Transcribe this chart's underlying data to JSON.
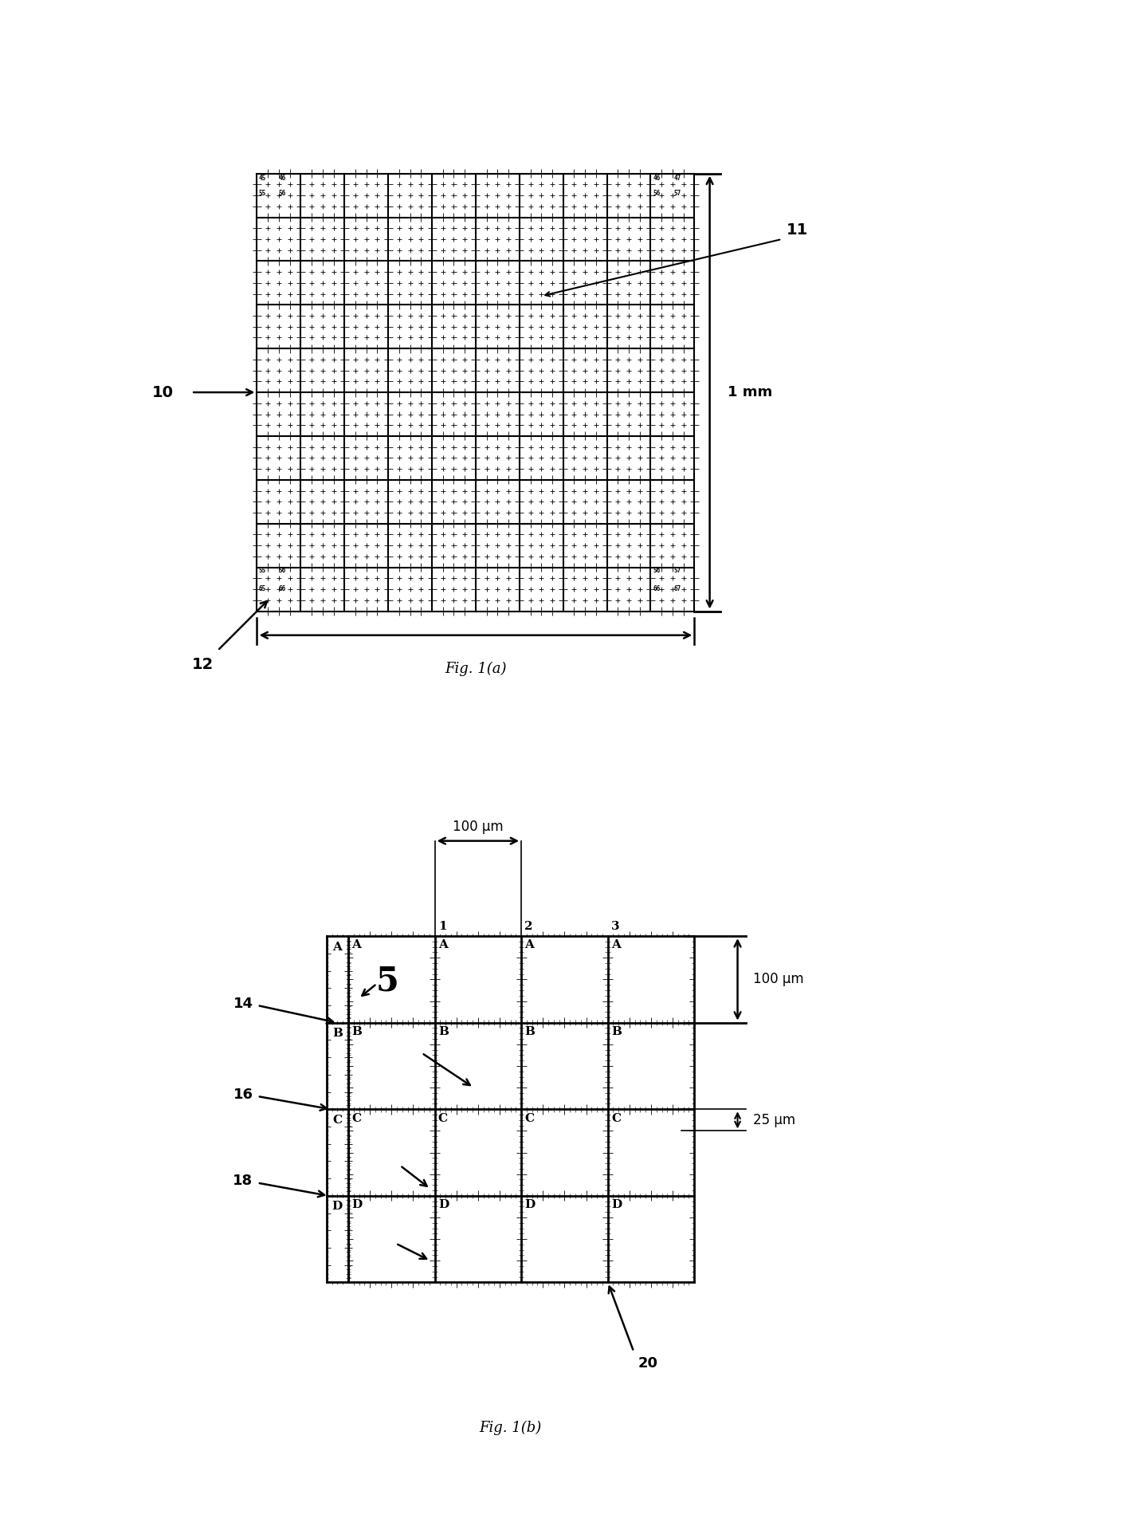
{
  "fig_width": 14.18,
  "fig_height": 19.19,
  "bg_color": "#ffffff",
  "fig1a": {
    "title": "Fig. 1(a)",
    "grid_rows": 10,
    "grid_cols": 10,
    "cell_size": 1.0,
    "sub_ticks": 4,
    "corner_labels_tl": [
      "45",
      "46",
      "55",
      "56"
    ],
    "corner_labels_tr": [
      "46",
      "47",
      "56",
      "57"
    ],
    "corner_labels_bl": [
      "55",
      "56",
      "65",
      "66"
    ],
    "corner_labels_br": [
      "56",
      "57",
      "66",
      "67"
    ],
    "label_10": "10",
    "label_11": "11",
    "label_12": "12",
    "dim_label_v": "1 mm"
  },
  "fig1b": {
    "title": "Fig. 1(b)",
    "row_labels": [
      "A",
      "B",
      "C",
      "D"
    ],
    "col_labels": [
      "1",
      "2",
      "3"
    ],
    "big_label": "5",
    "ann_labels": [
      "14",
      "16",
      "18",
      "20"
    ],
    "dim_100um_h": "100 μm",
    "dim_100um_v": "100 μm",
    "dim_25um": "25 μm"
  }
}
